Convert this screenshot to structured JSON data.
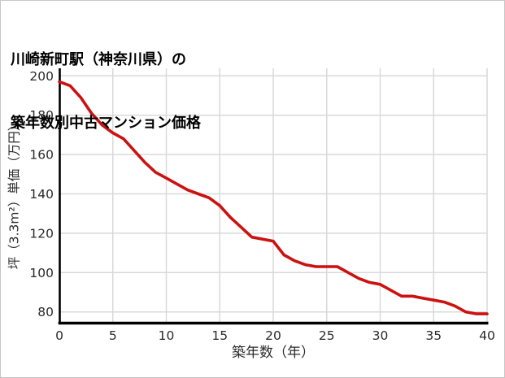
{
  "title": {
    "line1": "川崎新町駅（神奈川県）の",
    "line2": "築年数別中古マンション価格"
  },
  "chart_data": {
    "type": "line",
    "title": "川崎新町駅（神奈川県）の築年数別中古マンション価格",
    "xlabel": "築年数（年）",
    "ylabel": "坪（3.3m²）単価（万円）",
    "x": [
      0,
      1,
      2,
      3,
      4,
      5,
      6,
      7,
      8,
      9,
      10,
      11,
      12,
      13,
      14,
      15,
      16,
      17,
      18,
      19,
      20,
      21,
      22,
      23,
      24,
      25,
      26,
      27,
      28,
      29,
      30,
      31,
      32,
      33,
      34,
      35,
      36,
      37,
      38,
      39,
      40
    ],
    "values": [
      197,
      195,
      189,
      181,
      175,
      171,
      168,
      162,
      156,
      151,
      148,
      145,
      142,
      140,
      138,
      134,
      128,
      123,
      118,
      117,
      116,
      109,
      106,
      104,
      103,
      103,
      103,
      100,
      97,
      95,
      94,
      91,
      88,
      88,
      87,
      86,
      85,
      83,
      80,
      79,
      79
    ],
    "xlim": [
      0,
      40
    ],
    "ylim": [
      80,
      200
    ],
    "x_ticks": [
      0,
      5,
      10,
      15,
      20,
      25,
      30,
      35,
      40
    ],
    "y_ticks": [
      80,
      100,
      120,
      140,
      160,
      180,
      200
    ],
    "grid": true,
    "legend": "none",
    "line_color": "#cc1111",
    "grid_color": "#d9d9d9",
    "axis_color": "#000000",
    "tick_label_color": "#2b2b2b",
    "axis_label_color": "#2b2b2b"
  }
}
